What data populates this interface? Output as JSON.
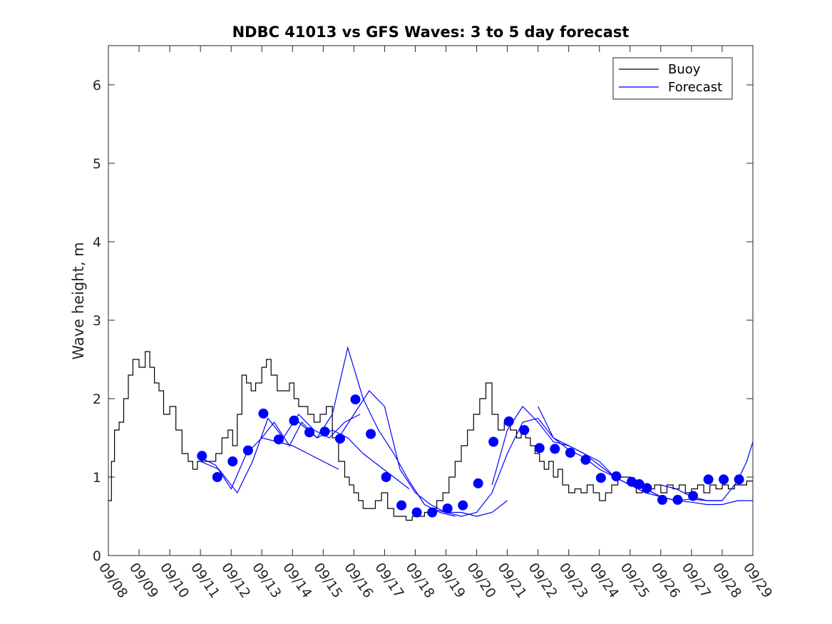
{
  "chart_data": {
    "type": "line",
    "title": "NDBC 41013 vs GFS Waves: 3 to 5 day forecast",
    "xlabel": "",
    "ylabel": "Wave height, m",
    "xlim": [
      0,
      21
    ],
    "ylim": [
      0,
      6.5
    ],
    "y_ticks": [
      0,
      1,
      2,
      3,
      4,
      5,
      6
    ],
    "x_ticks": [
      0,
      1,
      2,
      3,
      4,
      5,
      6,
      7,
      8,
      9,
      10,
      11,
      12,
      13,
      14,
      15,
      16,
      17,
      18,
      19,
      20,
      21
    ],
    "x_tick_labels": [
      "09/08",
      "09/09",
      "09/10",
      "09/11",
      "09/12",
      "09/13",
      "09/14",
      "09/15",
      "09/16",
      "09/17",
      "09/18",
      "09/19",
      "09/20",
      "09/21",
      "09/22",
      "09/23",
      "09/24",
      "09/25",
      "09/26",
      "09/27",
      "09/28",
      "09/29"
    ],
    "legend": [
      {
        "label": "Buoy",
        "color": "#000000"
      },
      {
        "label": "Forecast",
        "color": "#0000ff"
      }
    ],
    "legend_position": "top-right",
    "colors": {
      "buoy": "#000000",
      "forecast": "#0000ff",
      "marker": "#0000ff"
    },
    "series": [
      {
        "name": "Buoy",
        "type": "step",
        "x": [
          0,
          0.1,
          0.2,
          0.35,
          0.5,
          0.65,
          0.8,
          1.0,
          1.2,
          1.35,
          1.5,
          1.65,
          1.8,
          2.0,
          2.2,
          2.4,
          2.6,
          2.75,
          2.9,
          3.1,
          3.3,
          3.5,
          3.7,
          3.9,
          4.05,
          4.2,
          4.35,
          4.5,
          4.65,
          4.8,
          5.0,
          5.15,
          5.3,
          5.5,
          5.7,
          5.9,
          6.05,
          6.2,
          6.35,
          6.5,
          6.7,
          6.9,
          7.1,
          7.3,
          7.5,
          7.7,
          7.85,
          8.0,
          8.15,
          8.3,
          8.5,
          8.7,
          8.9,
          9.1,
          9.3,
          9.5,
          9.7,
          9.9,
          10.1,
          10.3,
          10.5,
          10.7,
          10.9,
          11.1,
          11.3,
          11.5,
          11.7,
          11.9,
          12.1,
          12.3,
          12.5,
          12.7,
          12.9,
          13.1,
          13.3,
          13.45,
          13.6,
          13.75,
          13.9,
          14.05,
          14.2,
          14.35,
          14.5,
          14.65,
          14.8,
          15.0,
          15.2,
          15.4,
          15.6,
          15.8,
          16.0,
          16.2,
          16.4,
          16.6,
          16.8,
          17.0,
          17.2,
          17.4,
          17.6,
          17.8,
          18.0,
          18.2,
          18.4,
          18.6,
          18.8,
          19.0,
          19.2,
          19.4,
          19.6,
          19.8,
          20.0,
          20.2,
          20.4,
          20.6,
          20.8,
          21.0
        ],
        "values": [
          0.7,
          1.2,
          1.6,
          1.7,
          2.0,
          2.3,
          2.5,
          2.4,
          2.6,
          2.4,
          2.2,
          2.1,
          1.8,
          1.9,
          1.6,
          1.3,
          1.2,
          1.1,
          1.2,
          1.2,
          1.2,
          1.3,
          1.5,
          1.6,
          1.4,
          1.8,
          2.3,
          2.2,
          2.1,
          2.2,
          2.4,
          2.5,
          2.3,
          2.1,
          2.1,
          2.2,
          2.0,
          1.9,
          1.9,
          1.8,
          1.7,
          1.8,
          1.9,
          1.5,
          1.2,
          1.0,
          0.9,
          0.8,
          0.7,
          0.6,
          0.6,
          0.7,
          0.8,
          0.6,
          0.5,
          0.5,
          0.45,
          0.5,
          0.5,
          0.55,
          0.6,
          0.7,
          0.8,
          1.0,
          1.2,
          1.4,
          1.6,
          1.8,
          2.0,
          2.2,
          1.8,
          1.6,
          1.7,
          1.6,
          1.5,
          1.6,
          1.5,
          1.4,
          1.3,
          1.2,
          1.1,
          1.2,
          1.0,
          1.1,
          0.9,
          0.8,
          0.85,
          0.8,
          0.9,
          0.8,
          0.7,
          0.8,
          0.9,
          1.0,
          1.0,
          0.9,
          0.8,
          0.9,
          0.85,
          0.9,
          0.8,
          0.9,
          0.85,
          0.9,
          0.8,
          0.85,
          0.9,
          0.8,
          0.9,
          0.85,
          0.9,
          0.85,
          0.9,
          0.9,
          0.95,
          0.95
        ]
      },
      {
        "name": "Forecast",
        "type": "line",
        "runs": [
          {
            "x": [
              3.0,
              3.5,
              4.0,
              4.5,
              5.0,
              5.5,
              6.0,
              6.5,
              7.0,
              7.5
            ],
            "values": [
              1.25,
              1.15,
              0.85,
              1.3,
              1.5,
              1.45,
              1.4,
              1.3,
              1.2,
              1.1
            ]
          },
          {
            "x": [
              3.0,
              3.6,
              4.2,
              4.7,
              5.2,
              5.7,
              6.2,
              6.7,
              7.2,
              7.7,
              8.2
            ],
            "values": [
              1.2,
              1.1,
              0.8,
              1.2,
              1.75,
              1.5,
              1.8,
              1.6,
              1.5,
              1.7,
              1.8
            ]
          },
          {
            "x": [
              5.0,
              5.4,
              5.9,
              6.3,
              6.8,
              7.3,
              7.8,
              8.3,
              8.8,
              9.3,
              9.8
            ],
            "values": [
              1.5,
              1.7,
              1.4,
              1.7,
              1.5,
              1.6,
              1.5,
              1.3,
              1.15,
              1.0,
              0.85
            ]
          },
          {
            "x": [
              6.2,
              6.8,
              7.3,
              7.8,
              8.3,
              8.8,
              9.3,
              9.8,
              10.3,
              10.8,
              11.3
            ],
            "values": [
              1.7,
              1.5,
              1.8,
              2.65,
              2.0,
              1.6,
              1.3,
              0.95,
              0.65,
              0.55,
              0.5
            ]
          },
          {
            "x": [
              7.5,
              8.0,
              8.5,
              9.0,
              9.5,
              10.0,
              10.5,
              11.0,
              11.5,
              12.0,
              12.5,
              13.0
            ],
            "values": [
              1.5,
              1.8,
              2.1,
              1.9,
              1.1,
              0.8,
              0.65,
              0.55,
              0.55,
              0.5,
              0.55,
              0.7
            ]
          },
          {
            "x": [
              10.5,
              11.0,
              11.5,
              12.0,
              12.5,
              13.0,
              13.5,
              14.0,
              14.5,
              15.0,
              15.5,
              16.0
            ],
            "values": [
              0.6,
              0.55,
              0.5,
              0.55,
              0.8,
              1.3,
              1.7,
              1.75,
              1.5,
              1.4,
              1.3,
              1.2
            ]
          },
          {
            "x": [
              12.5,
              13.0,
              13.5,
              14.0,
              14.5,
              15.0,
              15.5,
              16.0,
              16.5,
              17.0,
              17.5,
              18.0
            ],
            "values": [
              0.9,
              1.6,
              1.9,
              1.7,
              1.45,
              1.4,
              1.3,
              1.15,
              1.0,
              0.9,
              0.85,
              0.75
            ]
          },
          {
            "x": [
              14.0,
              14.5,
              15.0,
              15.5,
              16.0,
              16.5,
              17.0,
              17.5,
              18.0,
              18.5,
              19.0,
              19.5,
              20.0
            ],
            "values": [
              1.9,
              1.5,
              1.35,
              1.25,
              1.1,
              1.0,
              0.9,
              0.85,
              0.75,
              0.7,
              0.72,
              0.7,
              0.7
            ]
          },
          {
            "x": [
              16.0,
              16.5,
              17.0,
              17.5,
              18.0,
              18.5,
              19.0,
              19.5,
              20.0,
              20.5,
              21.0
            ],
            "values": [
              1.2,
              1.0,
              0.9,
              0.8,
              0.75,
              0.7,
              0.68,
              0.65,
              0.65,
              0.7,
              0.7
            ]
          },
          {
            "x": [
              18.0,
              18.5,
              19.0,
              19.5,
              20.0,
              20.5,
              20.8,
              21.0
            ],
            "values": [
              0.9,
              0.85,
              0.75,
              0.7,
              0.7,
              0.95,
              1.2,
              1.45
            ]
          }
        ]
      },
      {
        "name": "Forecast markers",
        "type": "scatter",
        "x": [
          3.05,
          3.55,
          4.05,
          4.55,
          5.05,
          5.55,
          6.05,
          6.55,
          7.05,
          7.55,
          8.05,
          8.55,
          9.05,
          9.55,
          10.05,
          10.55,
          11.05,
          11.55,
          12.05,
          12.55,
          13.05,
          13.55,
          14.05,
          14.55,
          15.05,
          15.55,
          16.05,
          16.55,
          17.05,
          17.3,
          17.55,
          18.05,
          18.55,
          19.05,
          19.55,
          20.05,
          20.55
        ],
        "values": [
          1.27,
          1.0,
          1.2,
          1.34,
          1.81,
          1.48,
          1.72,
          1.57,
          1.58,
          1.49,
          1.99,
          1.55,
          1.0,
          0.64,
          0.55,
          0.55,
          0.6,
          0.64,
          0.92,
          1.45,
          1.71,
          1.6,
          1.37,
          1.36,
          1.31,
          1.22,
          0.99,
          1.01,
          0.94,
          0.91,
          0.86,
          0.71,
          0.71,
          0.76,
          0.97,
          0.97,
          0.97
        ]
      }
    ]
  }
}
